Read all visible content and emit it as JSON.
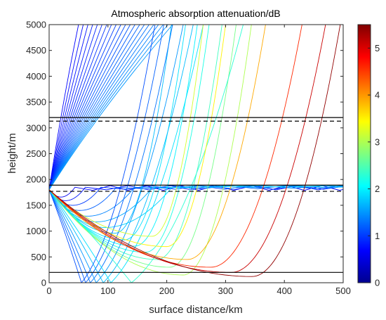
{
  "chart_data": {
    "type": "line",
    "title": "Atmospheric absorption attenuation/dB",
    "xlabel": "surface distance/km",
    "ylabel": "height/m",
    "xlim": [
      0,
      500
    ],
    "ylim": [
      0,
      5000
    ],
    "xticks": [
      "0",
      "100",
      "200",
      "300",
      "400",
      "500"
    ],
    "yticks": [
      "0",
      "500",
      "1000",
      "1500",
      "2000",
      "2500",
      "3000",
      "3500",
      "4000",
      "4500",
      "5000"
    ],
    "grid": false,
    "colorbar": {
      "colormap": "jet",
      "range": [
        0,
        5.5
      ],
      "ticks": [
        "0",
        "1",
        "2",
        "3",
        "4",
        "5"
      ]
    },
    "source_height_m": 1800,
    "horizontal_lines": [
      {
        "y": 3200,
        "style": "solid"
      },
      {
        "y": 3130,
        "style": "dashed"
      },
      {
        "y": 1890,
        "style": "solid"
      },
      {
        "y": 1770,
        "style": "dashed"
      },
      {
        "y": 200,
        "style": "solid"
      }
    ],
    "rays": {
      "up": {
        "x_at_top_km": [
          50,
          58,
          66,
          74,
          82,
          90,
          98,
          106,
          114,
          122,
          130,
          138,
          146,
          154,
          162,
          170,
          178,
          186,
          194,
          202,
          210
        ],
        "attenuation_db": [
          0.7,
          0.74,
          0.78,
          0.82,
          0.86,
          0.9,
          0.94,
          0.98,
          1.02,
          1.06,
          1.1,
          1.14,
          1.18,
          1.22,
          1.26,
          1.3,
          1.34,
          1.38,
          1.42,
          1.46,
          1.5
        ]
      },
      "low_ducted": {
        "min_height_m": [
          1660,
          1590,
          1500,
          1400,
          1290,
          1180,
          1070
        ],
        "min_x_km": [
          20,
          28,
          40,
          52,
          66,
          80,
          95
        ],
        "attenuation_db": [
          0.6,
          0.8,
          1.0,
          1.2,
          1.4,
          1.6,
          1.8
        ]
      },
      "low_escaping": {
        "min_height_m": [
          960,
          830,
          710,
          590,
          450,
          300,
          150
        ],
        "min_x_km": [
          112,
          128,
          146,
          164,
          184,
          205,
          228
        ],
        "x_at_top_km": [
          208,
          232,
          252,
          272,
          294,
          318,
          344
        ],
        "attenuation_db": [
          1.7,
          1.9,
          2.0,
          2.2,
          2.4,
          2.7,
          3.0
        ]
      },
      "ground_reflected": [
        {
          "reflect_x_km": 55,
          "x_at_top_km": 180,
          "attenuation_db": 1.1
        },
        {
          "reflect_x_km": 62,
          "x_at_top_km": 195,
          "attenuation_db": 1.2
        },
        {
          "reflect_x_km": 70,
          "x_at_top_km": 210,
          "attenuation_db": 1.3
        },
        {
          "reflect_x_km": 80,
          "x_at_top_km": 228,
          "attenuation_db": 1.5
        },
        {
          "reflect_x_km": 92,
          "x_at_top_km": 245,
          "attenuation_db": 1.7
        },
        {
          "reflect_x_km": 105,
          "x_at_top_km": 262,
          "attenuation_db": 1.9
        },
        {
          "reflect_x_km": 140,
          "x_at_top_km": 330,
          "attenuation_db": 2.3
        }
      ],
      "late_turning": [
        {
          "min_x_km": 175,
          "min_height_m": 900,
          "x_at_top_km": 262,
          "attenuation_db": 3.2
        },
        {
          "min_x_km": 200,
          "min_height_m": 700,
          "x_at_top_km": 300,
          "attenuation_db": 3.5
        },
        {
          "min_x_km": 235,
          "min_height_m": 450,
          "x_at_top_km": 368,
          "attenuation_db": 3.9
        },
        {
          "min_x_km": 275,
          "min_height_m": 300,
          "x_at_top_km": 430,
          "attenuation_db": 4.6
        },
        {
          "min_x_km": 310,
          "min_height_m": 200,
          "x_at_top_km": 470,
          "attenuation_db": 5.1
        },
        {
          "min_x_km": 345,
          "min_height_m": 120,
          "x_at_top_km": 495,
          "attenuation_db": 5.4
        }
      ]
    }
  }
}
